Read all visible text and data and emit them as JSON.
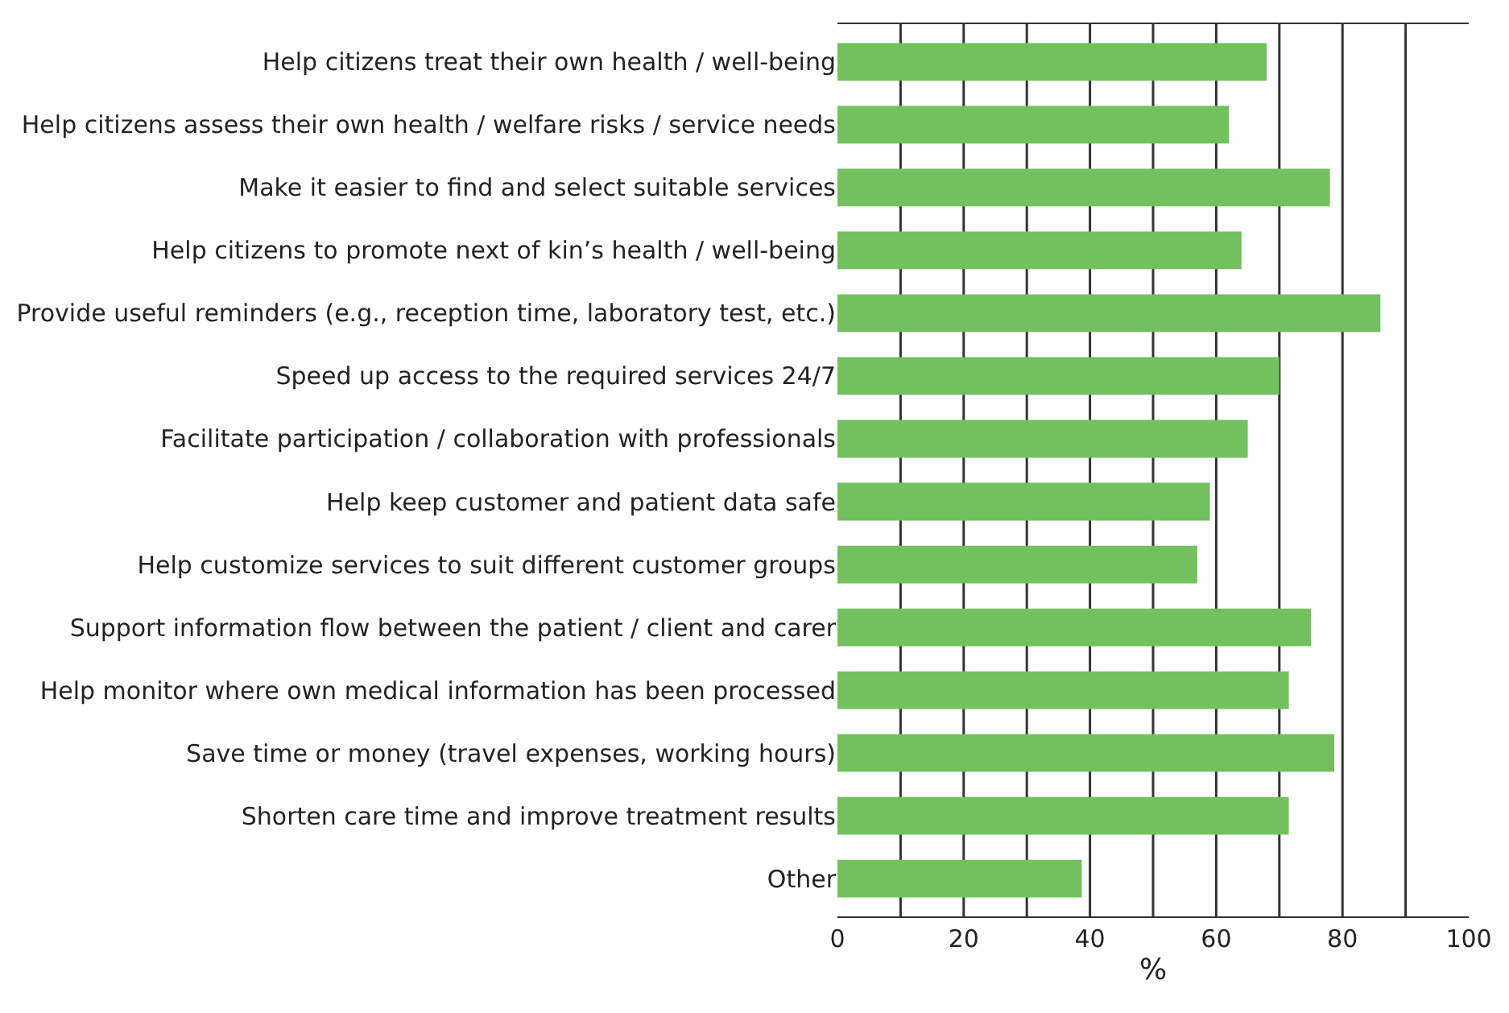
{
  "chart_data": {
    "type": "bar",
    "orientation": "horizontal",
    "xlabel": "%",
    "categories": [
      "Help citizens treat their own health / well-being",
      "Help citizens assess their own health / welfare risks / service needs",
      "Make it easier to find and select suitable services",
      "Help citizens to promote next of kin’s health / well-being",
      "Provide useful reminders (e.g., reception time, laboratory test, etc.)",
      "Speed up access to the required services 24/7",
      "Facilitate participation / collaboration with professionals",
      "Help keep customer and patient data safe",
      "Help customize services to suit different customer groups",
      "Support information flow between the patient / client and carer",
      "Help monitor where own medical information has been processed",
      "Save time or money (travel expenses, working hours)",
      "Shorten care time and improve treatment results",
      "Other"
    ],
    "values": [
      68,
      62,
      78,
      64,
      86,
      70,
      65,
      59,
      57,
      75,
      71.5,
      78.7,
      71.5,
      38.7
    ],
    "color": "#73c05e",
    "xlim": [
      0,
      100
    ],
    "xticks": [
      0,
      20,
      40,
      60,
      80,
      100
    ],
    "grid": "x"
  }
}
